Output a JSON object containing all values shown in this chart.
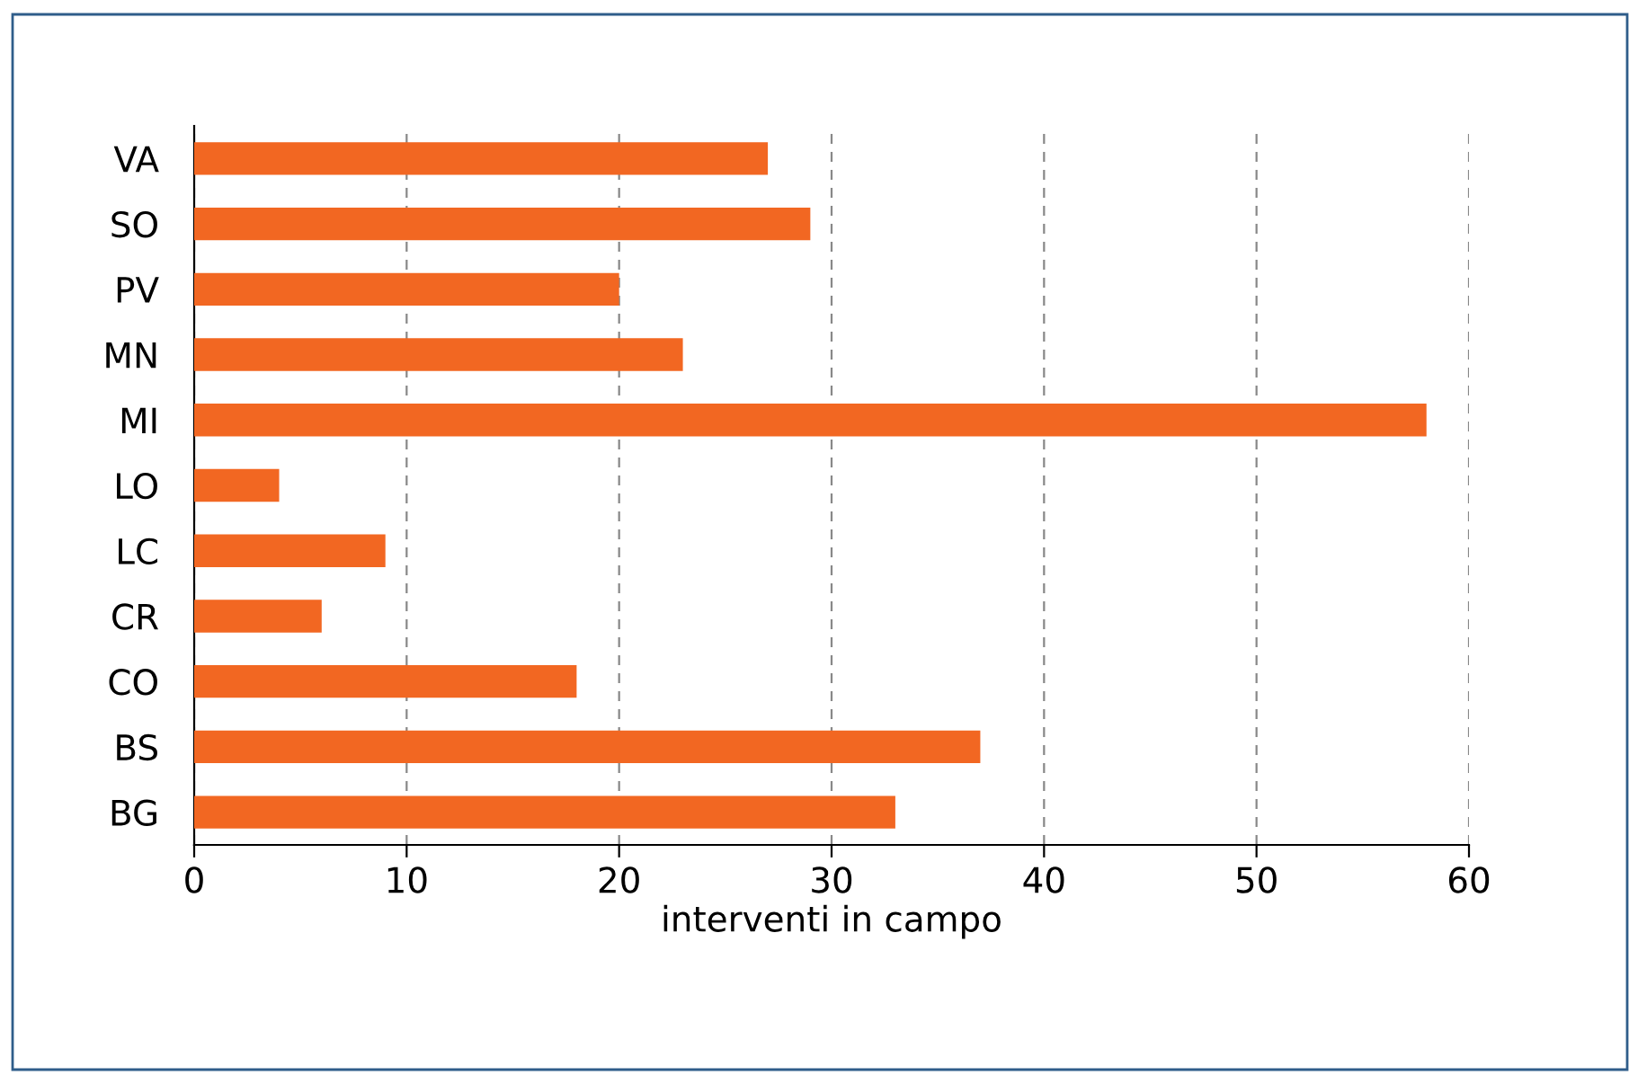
{
  "chart_data": {
    "type": "bar",
    "orientation": "horizontal",
    "xlabel": "interventi in campo",
    "categories": [
      "VA",
      "SO",
      "PV",
      "MN",
      "MI",
      "LO",
      "LC",
      "CR",
      "CO",
      "BS",
      "BG"
    ],
    "values": [
      27,
      29,
      20,
      23,
      58,
      4,
      9,
      6,
      18,
      37,
      33
    ],
    "color": "#f26722",
    "xlim": [
      0,
      60
    ],
    "xticks": [
      0,
      10,
      20,
      30,
      40,
      50,
      60
    ],
    "grid": "x",
    "legend": false
  }
}
